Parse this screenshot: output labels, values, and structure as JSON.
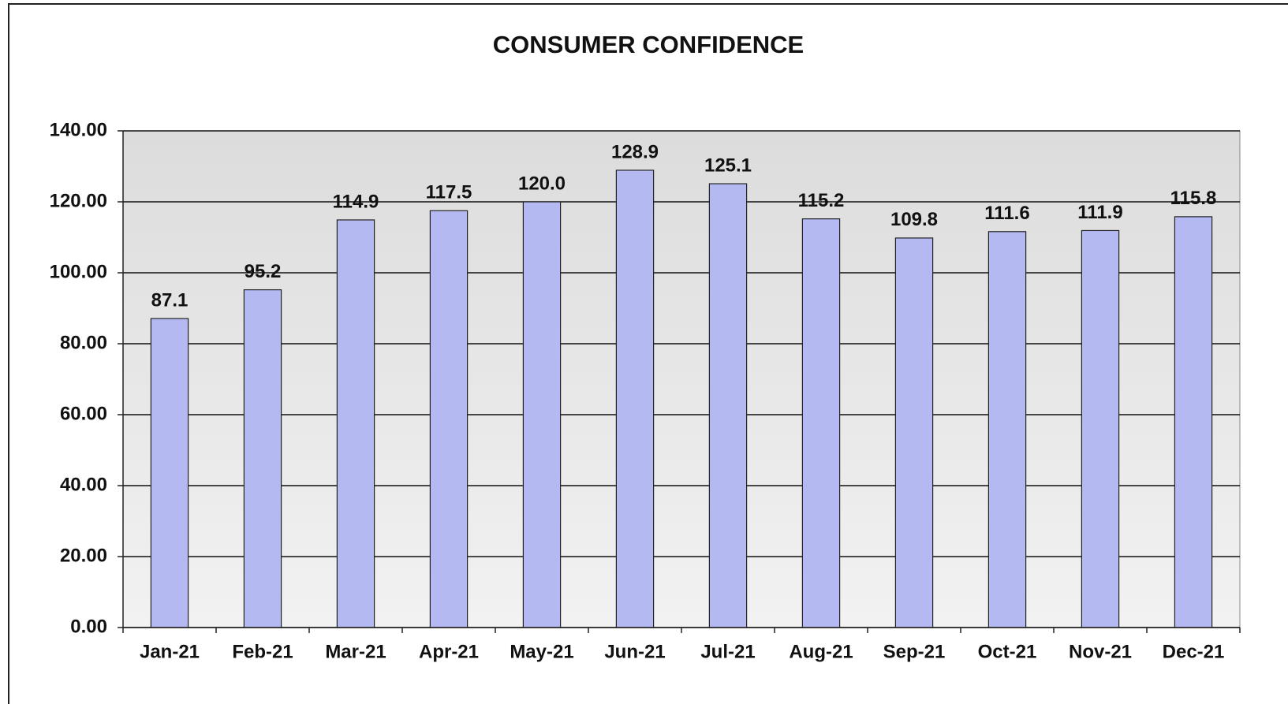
{
  "chart_data": {
    "type": "bar",
    "title": "CONSUMER CONFIDENCE",
    "categories": [
      "Jan-21",
      "Feb-21",
      "Mar-21",
      "Apr-21",
      "May-21",
      "Jun-21",
      "Jul-21",
      "Aug-21",
      "Sep-21",
      "Oct-21",
      "Nov-21",
      "Dec-21"
    ],
    "values": [
      87.1,
      95.2,
      114.9,
      117.5,
      120.0,
      128.9,
      125.1,
      115.2,
      109.8,
      111.6,
      111.9,
      115.8
    ],
    "value_labels": [
      "87.1",
      "95.2",
      "114.9",
      "117.5",
      "120.0",
      "128.9",
      "125.1",
      "115.2",
      "109.8",
      "111.6",
      "111.9",
      "115.8"
    ],
    "color": "#b4b9f2",
    "ylim": [
      0,
      140
    ],
    "yticks": [
      {
        "value": 0,
        "label": "0.00"
      },
      {
        "value": 20,
        "label": "20.00"
      },
      {
        "value": 40,
        "label": "40.00"
      },
      {
        "value": 60,
        "label": "60.00"
      },
      {
        "value": 80,
        "label": "80.00"
      },
      {
        "value": 100,
        "label": "100.00"
      },
      {
        "value": 120,
        "label": "120.00"
      },
      {
        "value": 140,
        "label": "140.00"
      }
    ],
    "grid": true
  }
}
